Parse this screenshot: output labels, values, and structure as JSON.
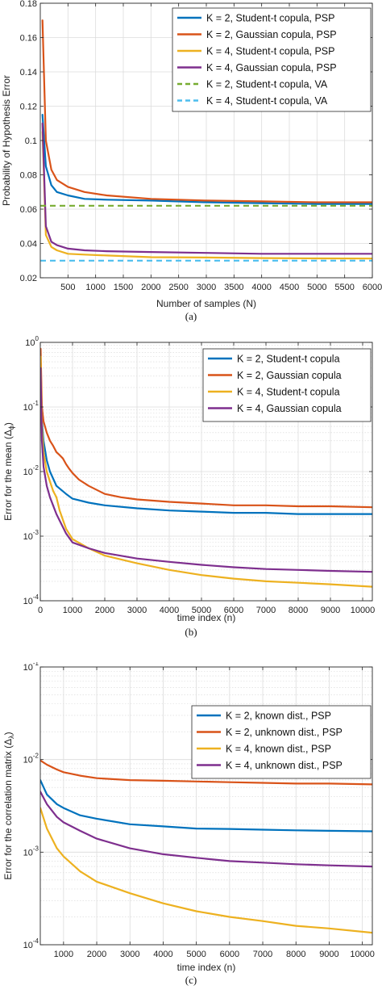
{
  "chart_data": [
    {
      "type": "line",
      "caption": "(a)",
      "xlabel": "Number of samples (N)",
      "ylabel": "Probability of Hypothesis Error",
      "xlim": [
        0,
        6000
      ],
      "ylim": [
        0.02,
        0.18
      ],
      "yscale": "linear",
      "grid": true,
      "legend": "top-right",
      "xticks": [
        500,
        1000,
        1500,
        2000,
        2500,
        3000,
        3500,
        4000,
        4500,
        5000,
        5500,
        6000
      ],
      "yticks": [
        0.02,
        0.04,
        0.06,
        0.08,
        0.1,
        0.12,
        0.14,
        0.16,
        0.18
      ],
      "ytick_labels": [
        "0.02",
        "0.04",
        "0.06",
        "0.08",
        "0.1",
        "0.12",
        "0.14",
        "0.16",
        "0.18"
      ],
      "series": [
        {
          "name": "K = 2, Student-t copula, PSP",
          "color": "#0072BD",
          "dash": "solid",
          "x": [
            40,
            100,
            200,
            300,
            500,
            800,
            1200,
            2000,
            3000,
            4000,
            5000,
            6000
          ],
          "y": [
            0.115,
            0.085,
            0.074,
            0.07,
            0.068,
            0.066,
            0.0655,
            0.065,
            0.064,
            0.0635,
            0.063,
            0.063
          ]
        },
        {
          "name": "K = 2, Gaussian copula, PSP",
          "color": "#D95319",
          "dash": "solid",
          "x": [
            40,
            100,
            200,
            300,
            500,
            800,
            1200,
            2000,
            3000,
            4000,
            5000,
            6000
          ],
          "y": [
            0.17,
            0.1,
            0.083,
            0.077,
            0.073,
            0.07,
            0.068,
            0.066,
            0.065,
            0.0645,
            0.064,
            0.064
          ]
        },
        {
          "name": "K = 4, Student-t copula, PSP",
          "color": "#EDB120",
          "dash": "solid",
          "x": [
            40,
            100,
            200,
            300,
            500,
            800,
            1200,
            2000,
            3000,
            4000,
            5000,
            6000
          ],
          "y": [
            0.105,
            0.045,
            0.038,
            0.036,
            0.034,
            0.0335,
            0.033,
            0.032,
            0.0318,
            0.0315,
            0.0313,
            0.0312
          ]
        },
        {
          "name": "K = 4, Gaussian copula, PSP",
          "color": "#7E2F8E",
          "dash": "solid",
          "x": [
            40,
            100,
            200,
            300,
            500,
            800,
            1200,
            2000,
            3000,
            4000,
            5000,
            6000
          ],
          "y": [
            0.11,
            0.05,
            0.041,
            0.039,
            0.037,
            0.036,
            0.0355,
            0.035,
            0.0345,
            0.034,
            0.034,
            0.034
          ]
        },
        {
          "name": "K = 2, Student-t copula, VA",
          "color": "#77AC30",
          "dash": "dashed",
          "x": [
            0,
            6000
          ],
          "y": [
            0.062,
            0.062
          ]
        },
        {
          "name": "K = 4, Student-t copula, VA",
          "color": "#4DBEEE",
          "dash": "dashed",
          "x": [
            0,
            6000
          ],
          "y": [
            0.03,
            0.03
          ]
        }
      ]
    },
    {
      "type": "line",
      "caption": "(b)",
      "xlabel": "time index (n)",
      "ylabel": "Error for the mean (Δ",
      "ylabel_sub": "ϕ",
      "ylabel_end": ")",
      "xlim": [
        0,
        10300
      ],
      "ylim": [
        0.0001,
        1
      ],
      "yscale": "log",
      "grid": true,
      "legend": "top-right",
      "xticks": [
        0,
        1000,
        2000,
        3000,
        4000,
        5000,
        6000,
        7000,
        8000,
        9000,
        10000
      ],
      "yticks": [
        0.0001,
        0.001,
        0.01,
        0.1,
        1
      ],
      "ytick_labels": [
        [
          "10",
          "-4"
        ],
        [
          "10",
          "-3"
        ],
        [
          "10",
          "-2"
        ],
        [
          "10",
          "-1"
        ],
        [
          "10",
          "0"
        ]
      ],
      "series": [
        {
          "name": "K = 2, Student-t copula",
          "color": "#0072BD",
          "dash": "solid",
          "x": [
            10,
            50,
            100,
            200,
            300,
            500,
            800,
            1000,
            1500,
            2000,
            3000,
            4000,
            5000,
            6000,
            7000,
            8000,
            9000,
            10300
          ],
          "y": [
            0.5,
            0.06,
            0.03,
            0.015,
            0.01,
            0.006,
            0.0045,
            0.0038,
            0.0033,
            0.003,
            0.0027,
            0.0025,
            0.0024,
            0.0023,
            0.0023,
            0.0022,
            0.0022,
            0.0022
          ]
        },
        {
          "name": "K = 2, Gaussian copula",
          "color": "#D95319",
          "dash": "solid",
          "x": [
            10,
            50,
            100,
            200,
            300,
            400,
            500,
            600,
            700,
            800,
            900,
            1000,
            1200,
            1500,
            2000,
            2500,
            3000,
            4000,
            5000,
            6000,
            7000,
            8000,
            9000,
            10300
          ],
          "y": [
            0.8,
            0.1,
            0.06,
            0.04,
            0.03,
            0.025,
            0.02,
            0.018,
            0.016,
            0.013,
            0.011,
            0.0095,
            0.0075,
            0.006,
            0.0045,
            0.004,
            0.0037,
            0.0034,
            0.0032,
            0.003,
            0.003,
            0.0029,
            0.0029,
            0.0028
          ]
        },
        {
          "name": "K = 4, Student-t copula",
          "color": "#EDB120",
          "dash": "solid",
          "x": [
            10,
            50,
            100,
            200,
            300,
            400,
            500,
            600,
            700,
            800,
            1000,
            1500,
            2000,
            3000,
            4000,
            5000,
            6000,
            7000,
            8000,
            9000,
            10300
          ],
          "y": [
            0.6,
            0.05,
            0.02,
            0.01,
            0.007,
            0.005,
            0.004,
            0.0025,
            0.0018,
            0.0013,
            0.0009,
            0.00065,
            0.0005,
            0.00038,
            0.0003,
            0.00025,
            0.00022,
            0.0002,
            0.00019,
            0.00018,
            0.000165
          ]
        },
        {
          "name": "K = 4, Gaussian copula",
          "color": "#7E2F8E",
          "dash": "solid",
          "x": [
            10,
            50,
            100,
            200,
            300,
            500,
            800,
            1000,
            1500,
            2000,
            3000,
            4000,
            5000,
            6000,
            7000,
            8000,
            9000,
            10300
          ],
          "y": [
            0.4,
            0.03,
            0.012,
            0.006,
            0.004,
            0.0022,
            0.0011,
            0.0008,
            0.00065,
            0.00055,
            0.00045,
            0.0004,
            0.00036,
            0.00033,
            0.00031,
            0.0003,
            0.00029,
            0.00028
          ]
        }
      ]
    },
    {
      "type": "line",
      "caption": "(c)",
      "xlabel": "time index (n)",
      "ylabel": "Error for the correlation matrix (Δ",
      "ylabel_sub": "λ",
      "ylabel_end": ")",
      "xlim": [
        300,
        10300
      ],
      "ylim": [
        0.0001,
        0.1
      ],
      "yscale": "log",
      "grid": true,
      "legend": "top-right",
      "xticks": [
        1000,
        2000,
        3000,
        4000,
        5000,
        6000,
        7000,
        8000,
        9000,
        10000
      ],
      "yticks": [
        0.0001,
        0.001,
        0.01,
        0.1
      ],
      "ytick_labels": [
        [
          "10",
          "-4"
        ],
        [
          "10",
          "-3"
        ],
        [
          "10",
          "-2"
        ],
        [
          "10",
          "-1"
        ]
      ],
      "series": [
        {
          "name": "K = 2, known dist., PSP",
          "color": "#0072BD",
          "dash": "solid",
          "x": [
            300,
            500,
            800,
            1000,
            1500,
            2000,
            3000,
            4000,
            5000,
            6000,
            7000,
            8000,
            9000,
            10300
          ],
          "y": [
            0.006,
            0.0042,
            0.0033,
            0.003,
            0.0025,
            0.0023,
            0.002,
            0.0019,
            0.0018,
            0.00178,
            0.00175,
            0.00172,
            0.0017,
            0.00168
          ]
        },
        {
          "name": "K = 2, unknown dist., PSP",
          "color": "#D95319",
          "dash": "solid",
          "x": [
            300,
            500,
            800,
            1000,
            1500,
            2000,
            3000,
            4000,
            5000,
            6000,
            7000,
            8000,
            9000,
            10300
          ],
          "y": [
            0.0098,
            0.0088,
            0.0078,
            0.0073,
            0.0067,
            0.0063,
            0.006,
            0.0059,
            0.0058,
            0.0057,
            0.0056,
            0.0055,
            0.0055,
            0.0054
          ]
        },
        {
          "name": "K = 4, known dist., PSP",
          "color": "#EDB120",
          "dash": "solid",
          "x": [
            300,
            500,
            800,
            1000,
            1500,
            2000,
            3000,
            4000,
            5000,
            6000,
            7000,
            8000,
            9000,
            10300
          ],
          "y": [
            0.003,
            0.0018,
            0.0011,
            0.0009,
            0.00062,
            0.00048,
            0.00036,
            0.00028,
            0.00023,
            0.0002,
            0.00018,
            0.00016,
            0.00015,
            0.000135
          ]
        },
        {
          "name": "K = 4, unknown dist., PSP",
          "color": "#7E2F8E",
          "dash": "solid",
          "x": [
            300,
            500,
            800,
            1000,
            1500,
            2000,
            3000,
            4000,
            5000,
            6000,
            7000,
            8000,
            9000,
            10300
          ],
          "y": [
            0.0045,
            0.0033,
            0.0024,
            0.0021,
            0.0017,
            0.0014,
            0.0011,
            0.00095,
            0.00087,
            0.0008,
            0.00077,
            0.00074,
            0.00072,
            0.0007
          ]
        }
      ]
    }
  ]
}
